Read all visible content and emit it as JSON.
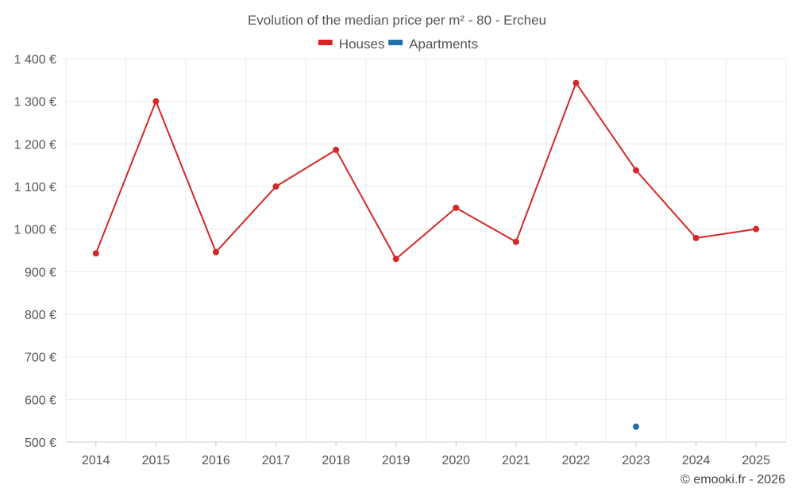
{
  "chart_data": {
    "type": "line",
    "title": "Evolution of the median price per m² - 80 - Ercheu",
    "xlabel": "",
    "ylabel": "",
    "categories": [
      "2014",
      "2015",
      "2016",
      "2017",
      "2018",
      "2019",
      "2020",
      "2021",
      "2022",
      "2023",
      "2024",
      "2025"
    ],
    "ylim": [
      500,
      1400
    ],
    "yticks": [
      500,
      600,
      700,
      800,
      900,
      1000,
      1100,
      1200,
      1300,
      1400
    ],
    "ytick_labels": [
      "500 €",
      "600 €",
      "700 €",
      "800 €",
      "900 €",
      "1 000 €",
      "1 100 €",
      "1 200 €",
      "1 300 €",
      "1 400 €"
    ],
    "grid": true,
    "legend_position": "top-center",
    "series": [
      {
        "name": "Houses",
        "color": "#d62728",
        "values": [
          943,
          1300,
          946,
          1100,
          1186,
          930,
          1050,
          970,
          1343,
          1138,
          979,
          1000
        ]
      },
      {
        "name": "Apartments",
        "color": "#1f6fa8",
        "values": [
          null,
          null,
          null,
          null,
          null,
          null,
          null,
          null,
          null,
          536,
          null,
          null
        ]
      }
    ],
    "credit": "© emooki.fr - 2026"
  }
}
